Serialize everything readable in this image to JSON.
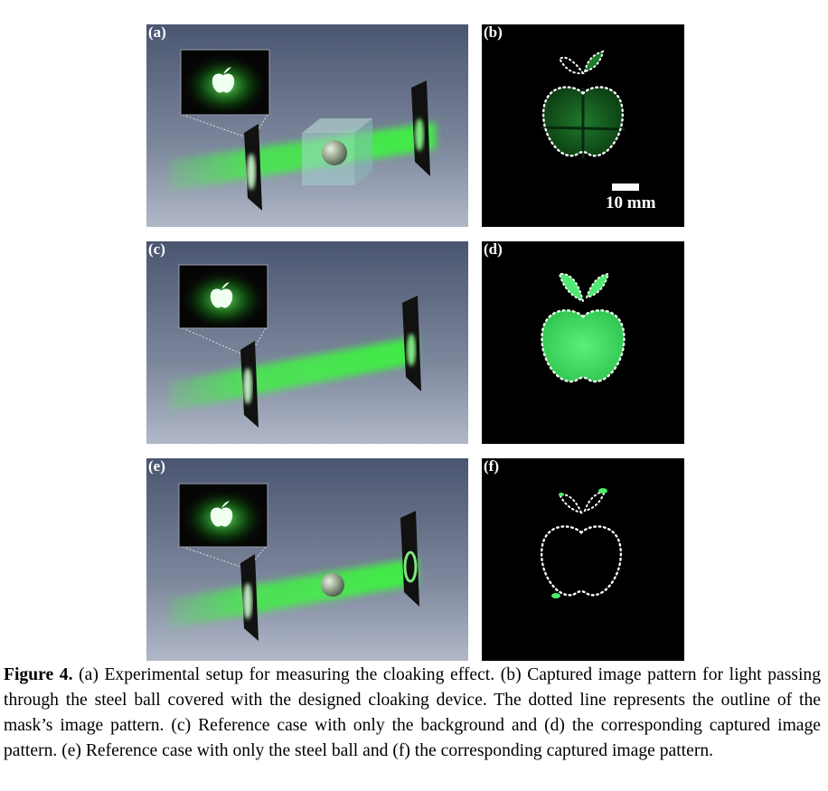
{
  "panels": {
    "a": {
      "label": "(a)"
    },
    "b": {
      "label": "(b)",
      "scale_bar": "10 mm"
    },
    "c": {
      "label": "(c)"
    },
    "d": {
      "label": "(d)"
    },
    "e": {
      "label": "(e)"
    },
    "f": {
      "label": "(f)"
    }
  },
  "caption": {
    "figure_label": "Figure 4.",
    "text": " (a) Experimental setup for measuring the cloaking effect. (b) Captured image pattern for light passing through the steel ball covered with the designed cloaking device. The dotted line represents the outline of the mask’s image pattern. (c) Reference case with only the background and (d) the corresponding captured image pattern. (e) Reference case with only the steel ball and (f) the corresponding captured image pattern."
  },
  "colors": {
    "beam": "#4cff4c",
    "setup_bg_top": "#4f5a72",
    "setup_bg_bottom": "#a8b2c4",
    "capture_bg": "#000000"
  }
}
